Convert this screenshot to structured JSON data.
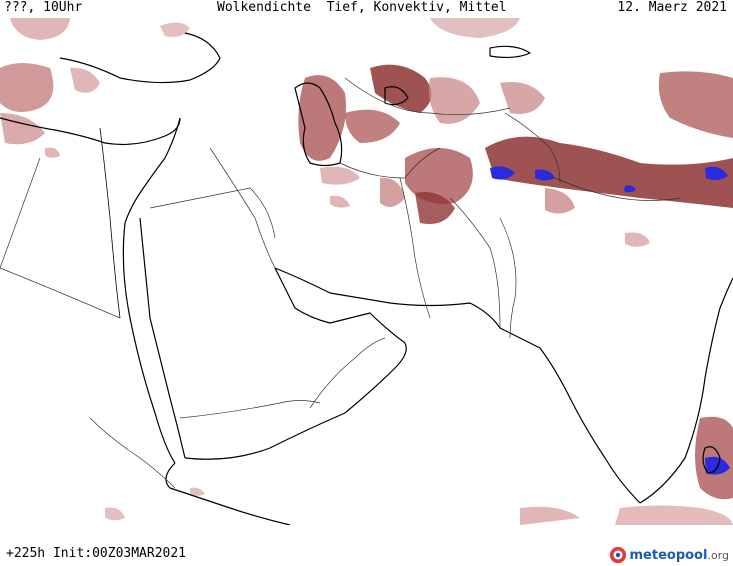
{
  "header": {
    "left": "???, 10Uhr",
    "title": "Wolkendichte  Tief, Konvektiv, Mittel",
    "date": "12. Maerz 2021"
  },
  "footer": {
    "run_info": "+225h Init:00Z03MAR2021"
  },
  "brand": {
    "name": "meteopool",
    "tld": ".org"
  },
  "colors": {
    "cloud_light": "#d9a4a4",
    "cloud_mid": "#b26262",
    "cloud_dark": "#8e3434",
    "cloud_convective": "#2a2ae0",
    "coastline": "#000000",
    "border": "#333333"
  }
}
